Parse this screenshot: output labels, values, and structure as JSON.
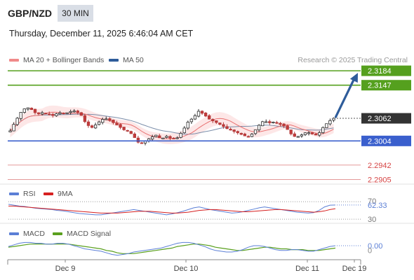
{
  "header": {
    "pair": "GBP/NZD",
    "timeframe": "30 MIN",
    "timestamp": "Thursday, December 11, 2025 6:46:04 AM CET"
  },
  "legend": {
    "ma20_label": "MA 20 + Bollinger Bands",
    "ma50_label": "MA 50",
    "credit": "Research © 2025 Trading Central",
    "rsi_label": "RSI",
    "rsi_ma_label": "9MA",
    "macd_label": "MACD",
    "macd_signal_label": "MACD Signal"
  },
  "colors": {
    "ma20": "#e87070",
    "ma50": "#2e5c9a",
    "band_fill": "#fde3e3",
    "target_green": "#55a01e",
    "pivot_blue": "#3a5fcd",
    "support_red": "#d64545",
    "arrow": "#2e5c9a",
    "last_price_box": "#333333",
    "rsi": "#5b7fd6",
    "rsi_ma": "#d62020",
    "macd": "#5b7fd6",
    "macd_signal": "#5aa01e"
  },
  "chart_data": [
    {
      "type": "candlestick",
      "panel": "price",
      "ylim": [
        2.2895,
        2.3195
      ],
      "x_ticks": [
        "Dec 9",
        "Dec 10",
        "Dec 11",
        "Dec 19"
      ],
      "levels": [
        {
          "value": 2.3184,
          "label": "2.3184",
          "kind": "target"
        },
        {
          "value": 2.3147,
          "label": "2.3147",
          "kind": "target"
        },
        {
          "value": 2.3062,
          "label": "2.3062",
          "kind": "last"
        },
        {
          "value": 2.3004,
          "label": "2.3004",
          "kind": "pivot"
        },
        {
          "value": 2.2942,
          "label": "2.2942",
          "kind": "support"
        },
        {
          "value": 2.2905,
          "label": "2.2905",
          "kind": "support"
        }
      ],
      "close_path": [
        2.303,
        2.3055,
        2.3078,
        2.3091,
        2.3084,
        2.3072,
        2.3077,
        2.3073,
        2.3069,
        2.3077,
        2.3073,
        2.3079,
        2.3081,
        2.3074,
        2.305,
        2.3037,
        2.3047,
        2.3059,
        2.3061,
        2.3052,
        2.3043,
        2.3033,
        2.3029,
        2.3014,
        2.2996,
        2.3003,
        2.3012,
        2.3019,
        2.3009,
        2.3016,
        2.3009,
        2.3012,
        2.303,
        2.3053,
        2.3064,
        2.3081,
        2.3071,
        2.3059,
        2.3053,
        2.3046,
        2.3037,
        2.3031,
        2.3026,
        2.302,
        2.3014,
        2.3023,
        2.3042,
        2.3056,
        2.305,
        2.3053,
        2.3047,
        2.3041,
        2.3023,
        2.3013,
        2.3019,
        2.3027,
        2.3022,
        2.3018,
        2.3038,
        2.3053,
        2.3062
      ],
      "arrow": {
        "from": 2.3062,
        "to": 2.3184
      }
    },
    {
      "type": "line",
      "panel": "rsi",
      "ylim": [
        27,
        75
      ],
      "tick_labels": [
        "70",
        "62.33",
        "30"
      ],
      "rsi_last": 62.33,
      "rsi": [
        64,
        62,
        60,
        59,
        57,
        55,
        54,
        53,
        52,
        50,
        49,
        47,
        45,
        43,
        42,
        41,
        40,
        40,
        42,
        44,
        46,
        48,
        50,
        52,
        50,
        48,
        46,
        44,
        42,
        40,
        42,
        45,
        48,
        52,
        56,
        58,
        55,
        52,
        50,
        48,
        46,
        44,
        45,
        47,
        50,
        53,
        56,
        58,
        56,
        54,
        52,
        50,
        48,
        46,
        45,
        44,
        45,
        50,
        58,
        62,
        62.33
      ],
      "rsi_ma": [
        60,
        60,
        59,
        58,
        57,
        56,
        55,
        54,
        53,
        52,
        51,
        50,
        49,
        48,
        47,
        46,
        45,
        44,
        44,
        44,
        44,
        45,
        46,
        47,
        48,
        48,
        48,
        47,
        46,
        45,
        44,
        44,
        45,
        46,
        48,
        50,
        51,
        52,
        52,
        51,
        50,
        49,
        48,
        47,
        47,
        48,
        49,
        50,
        51,
        52,
        52,
        51,
        50,
        49,
        48,
        47,
        46,
        47,
        49,
        52,
        54
      ]
    },
    {
      "type": "line",
      "panel": "macd",
      "ylim": [
        -0.0012,
        0.001
      ],
      "tick_labels": [
        "0.00",
        "0"
      ],
      "macd_last": "0.00",
      "macd": [
        0.0002,
        0.0004,
        0.0006,
        0.0007,
        0.0007,
        0.0006,
        0.0006,
        0.0005,
        0.0005,
        0.0006,
        0.0006,
        0.0005,
        0.0003,
        0.0001,
        -0.0001,
        -0.0002,
        -0.0003,
        -0.0004,
        -0.0006,
        -0.0008,
        -0.0009,
        -0.0008,
        -0.0007,
        -0.0005,
        -0.0004,
        -0.0003,
        -0.0002,
        -0.0001,
        0.0,
        0.0002,
        0.0004,
        0.0006,
        0.0007,
        0.0007,
        0.0006,
        0.0004,
        0.0002,
        -0.0001,
        -0.0003,
        -0.0004,
        -0.0005,
        -0.0005,
        -0.0004,
        -0.0002,
        0.0001,
        0.0003,
        0.0003,
        0.0002,
        0.0,
        -0.0002,
        -0.0003,
        -0.0003,
        -0.0002,
        -0.0002,
        -0.0003,
        -0.0004,
        -0.0004,
        -0.0002,
        0.0,
        0.0002,
        0.0003
      ],
      "macd_signal": [
        0.0001,
        0.0002,
        0.0003,
        0.0004,
        0.0005,
        0.0005,
        0.0005,
        0.0005,
        0.0005,
        0.0005,
        0.0005,
        0.0005,
        0.0004,
        0.0003,
        0.0002,
        0.0001,
        0.0,
        -0.0001,
        -0.0003,
        -0.0004,
        -0.0006,
        -0.0007,
        -0.0007,
        -0.0007,
        -0.0006,
        -0.0005,
        -0.0004,
        -0.0003,
        -0.0002,
        -0.0001,
        0.0,
        0.0002,
        0.0003,
        0.0004,
        0.0005,
        0.0005,
        0.0004,
        0.0003,
        0.0001,
        0.0,
        -0.0001,
        -0.0002,
        -0.0003,
        -0.0003,
        -0.0002,
        -0.0001,
        0.0,
        0.0001,
        0.0001,
        0.0,
        -0.0001,
        -0.0001,
        -0.0002,
        -0.0002,
        -0.0002,
        -0.0003,
        -0.0003,
        -0.0003,
        -0.0002,
        -0.0001,
        0.0
      ]
    }
  ]
}
